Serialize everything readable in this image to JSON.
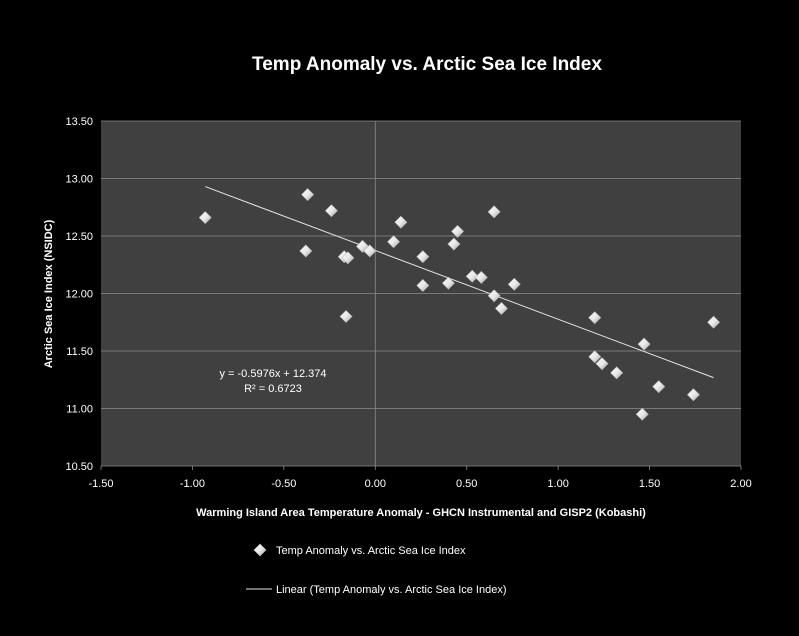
{
  "chart_data": {
    "type": "scatter",
    "title": "Temp Anomaly vs. Arctic Sea Ice Index",
    "xlabel": "Warming Island Area Temperature Anomaly - GHCN Instrumental and GISP2 (Kobashi)",
    "ylabel": "Arctic Sea Ice Index (NSIDC)",
    "xlim": [
      -1.5,
      2.0
    ],
    "ylim": [
      10.5,
      13.5
    ],
    "x_ticks": [
      "-1.50",
      "-1.00",
      "-0.50",
      "0.00",
      "0.50",
      "1.00",
      "1.50",
      "2.00"
    ],
    "y_ticks": [
      "10.50",
      "11.00",
      "11.50",
      "12.00",
      "12.50",
      "13.00",
      "13.50"
    ],
    "grid": "horizontal",
    "legend_position": "bottom",
    "series": [
      {
        "name": "Temp Anomaly vs. Arctic Sea Ice Index",
        "marker": "diamond",
        "color": "#ffffff",
        "x": [
          -0.93,
          -0.37,
          -0.38,
          -0.24,
          -0.17,
          -0.15,
          -0.16,
          -0.07,
          -0.03,
          0.1,
          0.14,
          0.26,
          0.26,
          0.4,
          0.43,
          0.45,
          0.53,
          0.58,
          0.65,
          0.65,
          0.69,
          0.76,
          1.2,
          1.2,
          1.24,
          1.32,
          1.46,
          1.47,
          1.55,
          1.74,
          1.85
        ],
        "y": [
          12.66,
          12.86,
          12.37,
          12.72,
          12.32,
          12.31,
          11.8,
          12.41,
          12.37,
          12.45,
          12.62,
          12.32,
          12.07,
          12.09,
          12.43,
          12.54,
          12.15,
          12.14,
          12.71,
          11.98,
          11.87,
          12.08,
          11.45,
          11.79,
          11.39,
          11.31,
          10.95,
          11.56,
          11.19,
          11.12,
          11.75
        ]
      }
    ],
    "trendline": {
      "name": "Linear (Temp Anomaly vs. Arctic Sea Ice Index)",
      "slope": -0.5976,
      "intercept": 12.374,
      "x_range": [
        -0.93,
        1.85
      ],
      "equation": "y = -0.5976x + 12.374",
      "r2": "R² = 0.6723"
    },
    "colors": {
      "background": "#000000",
      "plot_area": "#404040",
      "grid": "#8c8c8c",
      "text": "#ffffff",
      "trendline": "#e6e6e6"
    }
  }
}
